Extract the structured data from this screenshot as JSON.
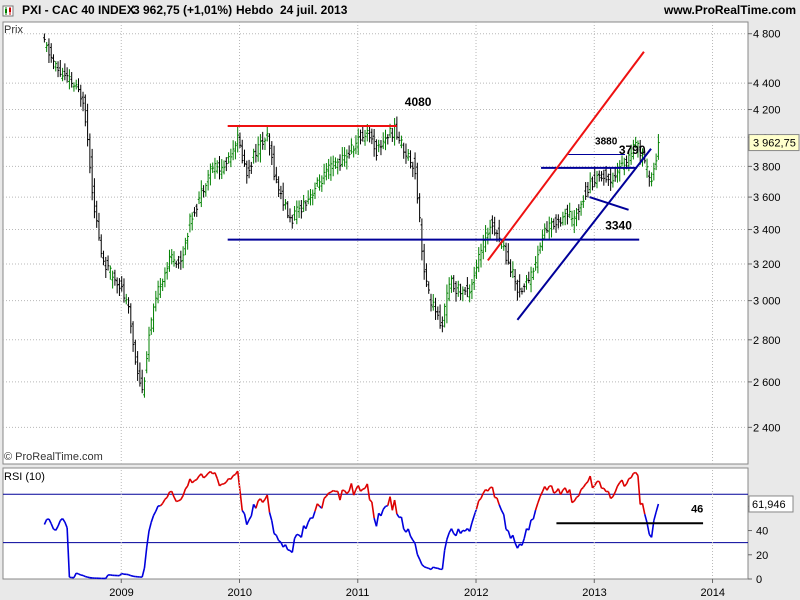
{
  "header": {
    "symbol_title": "PXI - CAC 40 INDEX",
    "last_change": "3 962,75 (+1,01%)",
    "period": "Hebdo",
    "date": "24 juil. 2013",
    "site": "www.ProRealTime.com"
  },
  "price_panel": {
    "label": "Prix",
    "watermark": "© ProRealTime.com",
    "last_price_label": "3 962,75",
    "levels": {
      "resistance_top": "4080",
      "level_3880": "3880",
      "support_3790": "3790",
      "support_3340": "3340"
    }
  },
  "rsi_panel": {
    "label": "RSI (10)",
    "last_value_label": "61,946",
    "support_label": "46"
  },
  "colors": {
    "up": "#008000",
    "down": "#000000",
    "rsi": "#0000dd",
    "rsi_hot": "#dd0000",
    "trend_red": "#ee1111",
    "trend_blue": "#000099",
    "grid": "#b8b8b8",
    "plot_bg": "#ffffff"
  },
  "chart_data": [
    {
      "type": "candlestick",
      "title": "PXI - CAC 40 INDEX",
      "ylabel": "Prix",
      "y_ticks": [
        "4 800",
        "4 400",
        "4 200",
        "4 000",
        "3 800",
        "3 600",
        "3 400",
        "3 200",
        "3 000",
        "2 800",
        "2 600",
        "2 400"
      ],
      "x_ticks": [
        "2009",
        "2010",
        "2011",
        "2012",
        "2013",
        "2014"
      ],
      "ylim": [
        2250,
        4900
      ],
      "scale": "log",
      "last_value": 3962.75,
      "grid": true,
      "anchors": [
        {
          "t": 2008.35,
          "v": 4750
        },
        {
          "t": 2008.48,
          "v": 4500
        },
        {
          "t": 2008.6,
          "v": 4400
        },
        {
          "t": 2008.7,
          "v": 4280
        },
        {
          "t": 2008.78,
          "v": 3600
        },
        {
          "t": 2008.85,
          "v": 3250
        },
        {
          "t": 2008.92,
          "v": 3150
        },
        {
          "t": 2009.0,
          "v": 3100
        },
        {
          "t": 2009.08,
          "v": 2950
        },
        {
          "t": 2009.14,
          "v": 2700
        },
        {
          "t": 2009.2,
          "v": 2550
        },
        {
          "t": 2009.26,
          "v": 2850
        },
        {
          "t": 2009.35,
          "v": 3100
        },
        {
          "t": 2009.45,
          "v": 3250
        },
        {
          "t": 2009.52,
          "v": 3200
        },
        {
          "t": 2009.6,
          "v": 3450
        },
        {
          "t": 2009.68,
          "v": 3600
        },
        {
          "t": 2009.78,
          "v": 3800
        },
        {
          "t": 2009.88,
          "v": 3780
        },
        {
          "t": 2010.0,
          "v": 4000
        },
        {
          "t": 2010.08,
          "v": 3750
        },
        {
          "t": 2010.15,
          "v": 3900
        },
        {
          "t": 2010.25,
          "v": 4000
        },
        {
          "t": 2010.33,
          "v": 3700
        },
        {
          "t": 2010.4,
          "v": 3550
        },
        {
          "t": 2010.45,
          "v": 3450
        },
        {
          "t": 2010.5,
          "v": 3500
        },
        {
          "t": 2010.6,
          "v": 3600
        },
        {
          "t": 2010.7,
          "v": 3700
        },
        {
          "t": 2010.8,
          "v": 3800
        },
        {
          "t": 2010.9,
          "v": 3850
        },
        {
          "t": 2011.0,
          "v": 3950
        },
        {
          "t": 2011.1,
          "v": 4050
        },
        {
          "t": 2011.18,
          "v": 3900
        },
        {
          "t": 2011.25,
          "v": 4000
        },
        {
          "t": 2011.33,
          "v": 4050
        },
        {
          "t": 2011.42,
          "v": 3900
        },
        {
          "t": 2011.5,
          "v": 3800
        },
        {
          "t": 2011.58,
          "v": 3150
        },
        {
          "t": 2011.63,
          "v": 3000
        },
        {
          "t": 2011.68,
          "v": 2950
        },
        {
          "t": 2011.72,
          "v": 2850
        },
        {
          "t": 2011.8,
          "v": 3100
        },
        {
          "t": 2011.88,
          "v": 3050
        },
        {
          "t": 2011.96,
          "v": 3050
        },
        {
          "t": 2012.05,
          "v": 3250
        },
        {
          "t": 2012.15,
          "v": 3450
        },
        {
          "t": 2012.22,
          "v": 3350
        },
        {
          "t": 2012.3,
          "v": 3200
        },
        {
          "t": 2012.38,
          "v": 3050
        },
        {
          "t": 2012.45,
          "v": 3100
        },
        {
          "t": 2012.52,
          "v": 3200
        },
        {
          "t": 2012.6,
          "v": 3400
        },
        {
          "t": 2012.7,
          "v": 3450
        },
        {
          "t": 2012.78,
          "v": 3500
        },
        {
          "t": 2012.85,
          "v": 3450
        },
        {
          "t": 2012.92,
          "v": 3600
        },
        {
          "t": 2013.0,
          "v": 3700
        },
        {
          "t": 2013.08,
          "v": 3750
        },
        {
          "t": 2013.15,
          "v": 3700
        },
        {
          "t": 2013.22,
          "v": 3780
        },
        {
          "t": 2013.3,
          "v": 3850
        },
        {
          "t": 2013.38,
          "v": 3950
        },
        {
          "t": 2013.45,
          "v": 3800
        },
        {
          "t": 2013.5,
          "v": 3700
        },
        {
          "t": 2013.56,
          "v": 3930
        }
      ],
      "annotations": [
        {
          "kind": "hline",
          "color": "red",
          "t1": 2009.9,
          "t2": 2011.33,
          "v": 4080,
          "label": "4080"
        },
        {
          "kind": "hline",
          "color": "blue",
          "t1": 2009.9,
          "t2": 2013.38,
          "v": 3340,
          "label": "3340"
        },
        {
          "kind": "hline",
          "color": "blue",
          "t1": 2012.55,
          "t2": 2013.36,
          "v": 3790,
          "label": "3790"
        },
        {
          "kind": "hline",
          "color": "blue",
          "thin": true,
          "t1": 2012.78,
          "t2": 2013.26,
          "v": 3880,
          "label": "3880"
        },
        {
          "kind": "trend",
          "color": "red",
          "t1": 2012.1,
          "v1": 3220,
          "t2": 2013.42,
          "v2": 4650
        },
        {
          "kind": "trend",
          "color": "blue",
          "t1": 2012.35,
          "v1": 2900,
          "t2": 2013.48,
          "v2": 3920
        },
        {
          "kind": "trend",
          "color": "blue",
          "t1": 2012.96,
          "v1": 3600,
          "t2": 2013.29,
          "v2": 3520
        }
      ]
    },
    {
      "type": "line",
      "title": "RSI (10)",
      "y_ticks": [
        "60",
        "40",
        "20",
        "0"
      ],
      "ylim": [
        0,
        90
      ],
      "last_value": 61.946,
      "series": [
        {
          "name": "RSI (10)",
          "values": "derived from price anchors"
        }
      ],
      "hlines": [
        70,
        30
      ],
      "support": {
        "v": 46,
        "t1": 2012.68,
        "t2": 2013.92,
        "label": "46"
      }
    }
  ]
}
